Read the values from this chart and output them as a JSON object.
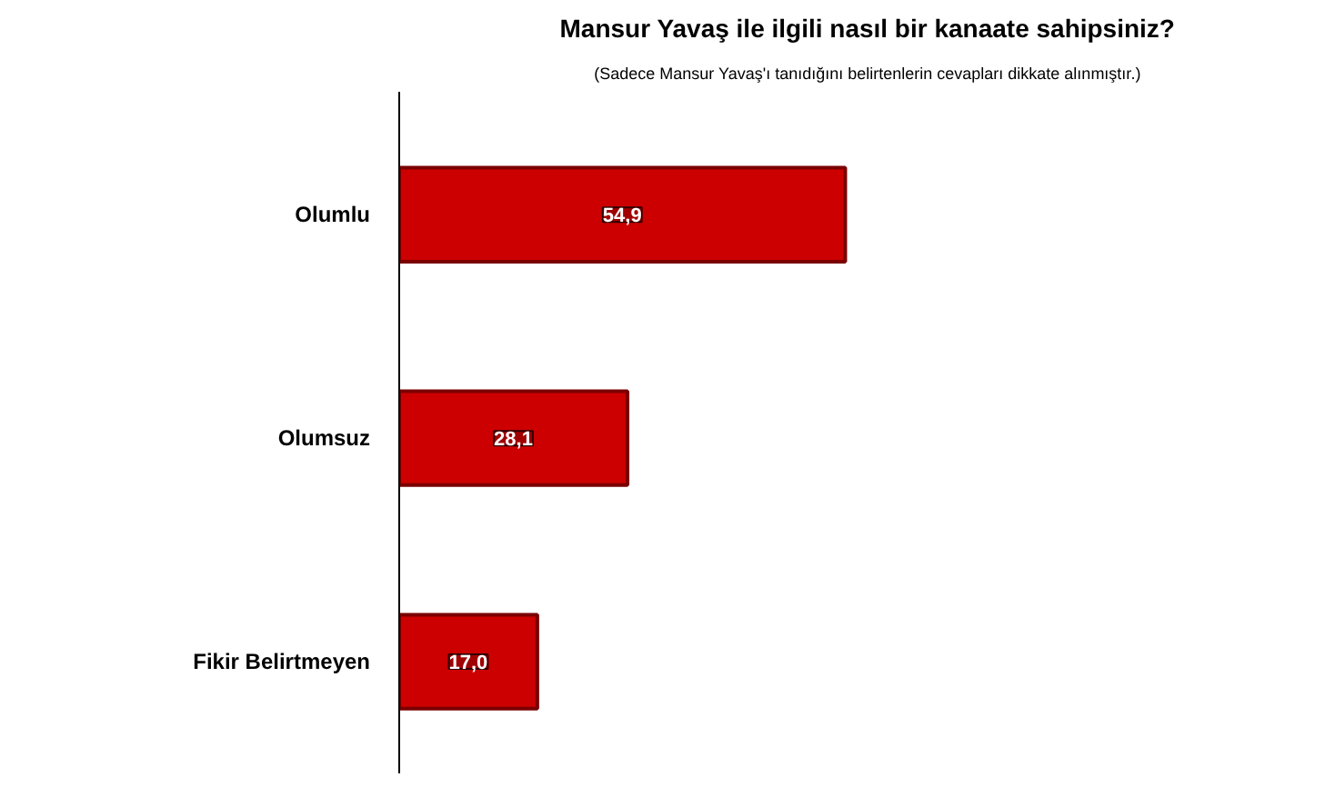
{
  "chart_data": {
    "type": "bar",
    "orientation": "horizontal",
    "title": "Mansur Yavaş ile ilgili nasıl bir kanaate sahipsiniz?",
    "subtitle": "(Sadece Mansur Yavaş'ı tanıdığını belirtenlerin cevapları dikkate alınmıştır.)",
    "categories": [
      "Olumlu",
      "Olumsuz",
      "Fikir Belirtmeyen"
    ],
    "values": [
      54.9,
      28.1,
      17.0
    ],
    "value_labels": [
      "54,9",
      "28,1",
      "17,0"
    ],
    "color": "#cc0000",
    "grid": false,
    "tick_labels": "y"
  }
}
